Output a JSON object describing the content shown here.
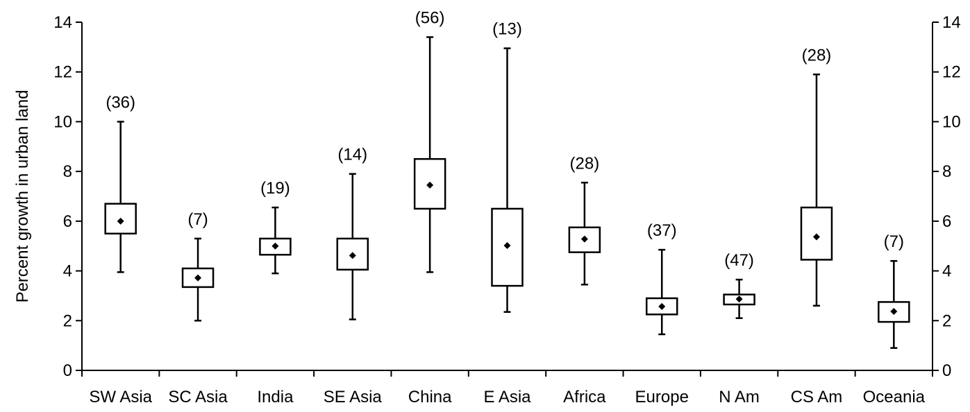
{
  "chart_data": {
    "type": "box",
    "ylabel": "Percent growth in urban land",
    "ylim": [
      0,
      14
    ],
    "yticks": [
      0,
      2,
      4,
      6,
      8,
      10,
      12,
      14
    ],
    "secondary_y_axis": true,
    "categories": [
      "SW Asia",
      "SC Asia",
      "India",
      "SE Asia",
      "China",
      "E Asia",
      "Africa",
      "Europe",
      "N Am",
      "CS Am",
      "Oceania"
    ],
    "counts": [
      "(36)",
      "(7)",
      "(19)",
      "(14)",
      "(56)",
      "(13)",
      "(28)",
      "(37)",
      "(47)",
      "(28)",
      "(7)"
    ],
    "boxes": [
      {
        "min": 3.95,
        "q1": 5.5,
        "q3": 6.7,
        "max": 10.0,
        "mean": 6.0
      },
      {
        "min": 2.0,
        "q1": 3.35,
        "q3": 4.1,
        "max": 5.3,
        "mean": 3.72
      },
      {
        "min": 3.9,
        "q1": 4.65,
        "q3": 5.3,
        "max": 6.55,
        "mean": 5.0
      },
      {
        "min": 2.05,
        "q1": 4.05,
        "q3": 5.3,
        "max": 7.9,
        "mean": 4.62
      },
      {
        "min": 3.95,
        "q1": 6.5,
        "q3": 8.5,
        "max": 13.4,
        "mean": 7.45
      },
      {
        "min": 2.35,
        "q1": 3.4,
        "q3": 6.5,
        "max": 12.95,
        "mean": 5.02
      },
      {
        "min": 3.45,
        "q1": 4.75,
        "q3": 5.75,
        "max": 7.55,
        "mean": 5.28
      },
      {
        "min": 1.45,
        "q1": 2.25,
        "q3": 2.9,
        "max": 4.85,
        "mean": 2.57
      },
      {
        "min": 2.1,
        "q1": 2.65,
        "q3": 3.05,
        "max": 3.65,
        "mean": 2.87
      },
      {
        "min": 2.6,
        "q1": 4.45,
        "q3": 6.55,
        "max": 11.9,
        "mean": 5.37
      },
      {
        "min": 0.9,
        "q1": 1.95,
        "q3": 2.75,
        "max": 4.4,
        "mean": 2.37
      }
    ]
  }
}
